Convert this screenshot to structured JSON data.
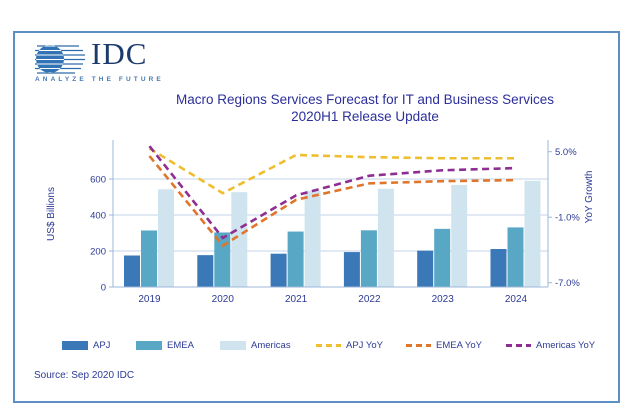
{
  "logo": {
    "brand": "IDC",
    "tagline": "ANALYZE THE FUTURE"
  },
  "title": {
    "line1": "Macro Regions Services Forecast for IT and Business Services",
    "line2": "2020H1 Release Update"
  },
  "source": "Source: Sep 2020 IDC",
  "chart_data": {
    "type": "bar",
    "subtype": "grouped bars with dashed YoY lines on secondary axis",
    "categories": [
      "2019",
      "2020",
      "2021",
      "2022",
      "2023",
      "2024"
    ],
    "bar_series": [
      {
        "name": "APJ",
        "color": "#3a78b8",
        "values": [
          175,
          177,
          185,
          194,
          202,
          211
        ]
      },
      {
        "name": "EMEA",
        "color": "#57a7c5",
        "values": [
          314,
          303,
          308,
          315,
          323,
          331
        ]
      },
      {
        "name": "Americas",
        "color": "#cfe4ee",
        "values": [
          543,
          527,
          535,
          546,
          567,
          590
        ]
      }
    ],
    "line_series": [
      {
        "name": "APJ YoY",
        "color": "#efbe2e",
        "values": [
          5.3,
          1.2,
          4.7,
          4.5,
          4.4,
          4.4
        ]
      },
      {
        "name": "EMEA YoY",
        "color": "#e0762c",
        "values": [
          4.6,
          -3.6,
          0.6,
          2.1,
          2.3,
          2.4
        ]
      },
      {
        "name": "Americas YoY",
        "color": "#8e2d92",
        "values": [
          5.5,
          -2.9,
          1.0,
          2.8,
          3.3,
          3.5
        ]
      }
    ],
    "left_axis": {
      "label": "US$ Billions",
      "tick_values": [
        0,
        200,
        400,
        600
      ],
      "tick_labels": [
        "0",
        "200",
        "400",
        "600"
      ],
      "range": [
        0,
        820
      ]
    },
    "right_axis": {
      "label": "YoY Growth",
      "tick_values": [
        5,
        -1,
        -7
      ],
      "tick_labels": [
        "5.0%",
        "-1.0%",
        "-7.0%"
      ],
      "range": [
        -7.4,
        6.1
      ]
    },
    "grid": true,
    "legend_position": "bottom",
    "legend": [
      "APJ",
      "EMEA",
      "Americas",
      "APJ YoY",
      "EMEA YoY",
      "Americas YoY"
    ]
  },
  "colors": {
    "card_border": "#5f8fc2",
    "grid_line": "#c3d3e8",
    "axis_line": "#9db7d8",
    "chart_text": "#2c3a96",
    "title_text": "#2c2f9c",
    "logo_navy": "#1d3a6d",
    "logo_tag_blue": "#4679b2",
    "globe_blue": "#3173b4"
  }
}
